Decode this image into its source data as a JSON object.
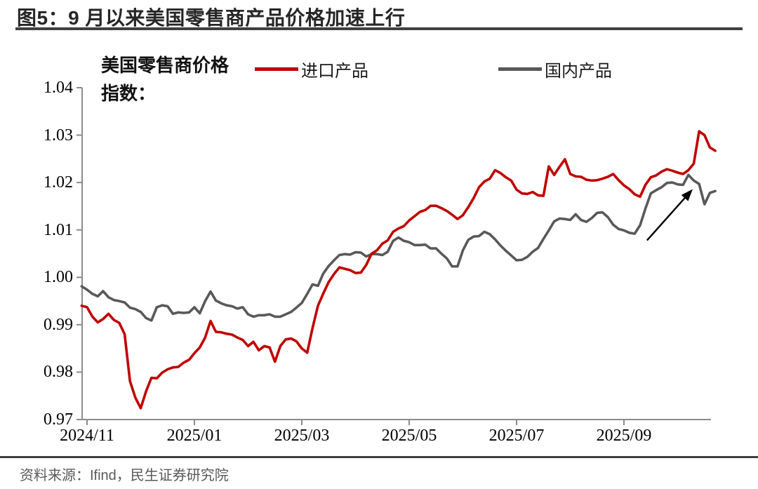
{
  "page": {
    "title": "图5：9 月以来美国零售商产品价格加速上行",
    "source_note": "资料来源：Ifind，民生证券研究院"
  },
  "chart_data": {
    "type": "line",
    "title": "图5：9 月以来美国零售商产品价格加速上行",
    "axis_group_label": "美国零售商价格指数：",
    "legend_position": "top",
    "grid": false,
    "colors": {
      "imported": "#C00000",
      "domestic": "#595959",
      "axis": "#8c8c8c",
      "arrow": "#000000"
    },
    "legend": [
      {
        "label": "进口产品",
        "color": "#C00000"
      },
      {
        "label": "国内产品",
        "color": "#595959"
      }
    ],
    "x_axis": {
      "unit": "months since 2024/11",
      "start": -0.1,
      "step": 0.1,
      "ticks": [
        {
          "m": 0,
          "label": "2024/11"
        },
        {
          "m": 2,
          "label": "2025/01"
        },
        {
          "m": 4,
          "label": "2025/03"
        },
        {
          "m": 6,
          "label": "2025/05"
        },
        {
          "m": 8,
          "label": "2025/07"
        },
        {
          "m": 10,
          "label": "2025/09"
        }
      ]
    },
    "y_axis": {
      "min": 0.97,
      "max": 1.04,
      "step": 0.01,
      "labels": [
        "0.97",
        "0.98",
        "0.99",
        "1.00",
        "1.01",
        "1.02",
        "1.03",
        "1.04"
      ]
    },
    "series": [
      {
        "name": "进口产品",
        "color": "#C00000",
        "values": [
          0.994,
          0.9937,
          0.9917,
          0.9905,
          0.9912,
          0.9923,
          0.991,
          0.9904,
          0.988,
          0.9781,
          0.9746,
          0.9724,
          0.976,
          0.9788,
          0.9787,
          0.9799,
          0.9806,
          0.981,
          0.9811,
          0.982,
          0.9826,
          0.984,
          0.9852,
          0.9873,
          0.9908,
          0.9885,
          0.9884,
          0.9881,
          0.9879,
          0.9873,
          0.9868,
          0.9855,
          0.9864,
          0.9846,
          0.9855,
          0.9852,
          0.9822,
          0.9855,
          0.9869,
          0.9871,
          0.9865,
          0.985,
          0.9841,
          0.9893,
          0.994,
          0.9966,
          0.999,
          1.0007,
          1.0021,
          1.0018,
          1.0015,
          1.0009,
          1.001,
          1.0026,
          1.005,
          1.0057,
          1.0071,
          1.0078,
          1.0096,
          1.0103,
          1.0108,
          1.012,
          1.0129,
          1.0138,
          1.0142,
          1.0151,
          1.0151,
          1.0146,
          1.014,
          1.0132,
          1.0123,
          1.0131,
          1.0148,
          1.0167,
          1.019,
          1.0202,
          1.0208,
          1.0226,
          1.022,
          1.0211,
          1.0204,
          1.0185,
          1.0177,
          1.0176,
          1.018,
          1.0173,
          1.0172,
          1.0234,
          1.0216,
          1.0233,
          1.0249,
          1.0218,
          1.0213,
          1.0212,
          1.0206,
          1.0204,
          1.0205,
          1.0208,
          1.0212,
          1.0218,
          1.0205,
          1.0194,
          1.0186,
          1.0175,
          1.017,
          1.0195,
          1.0211,
          1.0215,
          1.0223,
          1.0228,
          1.0225,
          1.0221,
          1.0218,
          1.0226,
          1.024,
          1.0308,
          1.03,
          1.0274,
          1.0267
        ]
      },
      {
        "name": "国内产品",
        "color": "#595959",
        "values": [
          0.9981,
          0.9974,
          0.9965,
          0.996,
          0.9971,
          0.9958,
          0.9952,
          0.995,
          0.9947,
          0.9936,
          0.9933,
          0.9927,
          0.9914,
          0.9909,
          0.9937,
          0.9941,
          0.9939,
          0.9923,
          0.9926,
          0.9925,
          0.9926,
          0.9937,
          0.9924,
          0.995,
          0.997,
          0.9951,
          0.9945,
          0.9941,
          0.9939,
          0.9934,
          0.9937,
          0.9922,
          0.9917,
          0.992,
          0.992,
          0.9922,
          0.9917,
          0.9917,
          0.9922,
          0.9927,
          0.9936,
          0.9946,
          0.9965,
          0.9985,
          0.9982,
          1.0008,
          1.0024,
          1.0036,
          1.0047,
          1.0049,
          1.0048,
          1.0053,
          1.0052,
          1.0044,
          1.0049,
          1.0049,
          1.0047,
          1.0054,
          1.0077,
          1.0084,
          1.0077,
          1.0074,
          1.0068,
          1.0068,
          1.0069,
          1.0061,
          1.0061,
          1.005,
          1.004,
          1.0023,
          1.0023,
          1.0057,
          1.0079,
          1.0086,
          1.0087,
          1.0096,
          1.0091,
          1.008,
          1.0067,
          1.0056,
          1.0046,
          1.0036,
          1.0037,
          1.0043,
          1.0054,
          1.0062,
          1.0081,
          1.0099,
          1.0118,
          1.0124,
          1.0123,
          1.0121,
          1.0133,
          1.0121,
          1.0117,
          1.0125,
          1.0136,
          1.0137,
          1.0127,
          1.0111,
          1.0102,
          1.0099,
          1.0094,
          1.0092,
          1.011,
          1.0145,
          1.0177,
          1.0184,
          1.019,
          1.0199,
          1.02,
          1.0196,
          1.0195,
          1.0216,
          1.0204,
          1.0197,
          1.0154,
          1.0178,
          1.0182
        ]
      }
    ],
    "annotation_arrow": {
      "from": [
        10.43,
        1.0078
      ],
      "to": [
        11.28,
        1.0186
      ]
    }
  }
}
